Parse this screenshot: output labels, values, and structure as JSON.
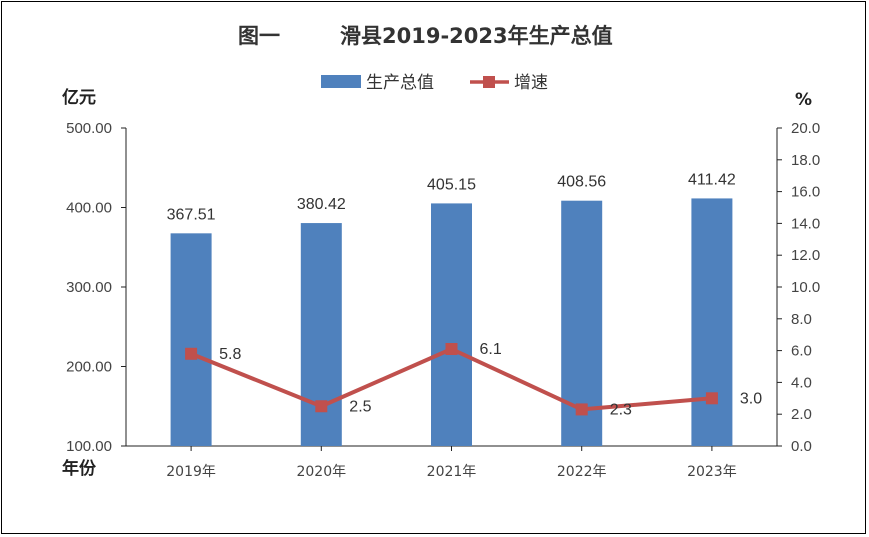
{
  "title_prefix": "图一",
  "title_main": "滑县2019-2023年生产总值",
  "y_left_unit": "亿元",
  "y_right_unit": "%",
  "x_unit": "年份",
  "colors": {
    "bar": "#4F81BD",
    "line": "#C0504D"
  },
  "chart_data": {
    "type": "bar",
    "categories": [
      "2019年",
      "2020年",
      "2021年",
      "2022年",
      "2023年"
    ],
    "series": [
      {
        "name": "生产总值",
        "type": "bar",
        "axis": "left",
        "values": [
          367.51,
          380.42,
          405.15,
          408.56,
          411.42
        ],
        "labels": [
          "367.51",
          "380.42",
          "405.15",
          "408.56",
          "411.42"
        ]
      },
      {
        "name": "增速",
        "type": "line",
        "axis": "right",
        "values": [
          5.8,
          2.5,
          6.1,
          2.3,
          3.0
        ],
        "labels": [
          "5.8",
          "2.5",
          "6.1",
          "2.3",
          "3.0"
        ]
      }
    ],
    "ylim_left": [
      100,
      500
    ],
    "yticks_left": [
      "100.00",
      "200.00",
      "300.00",
      "400.00",
      "500.00"
    ],
    "ylim_right": [
      0,
      20
    ],
    "yticks_right": [
      "0.0",
      "2.0",
      "4.0",
      "6.0",
      "8.0",
      "10.0",
      "12.0",
      "14.0",
      "16.0",
      "18.0",
      "20.0"
    ],
    "legend_position": "top",
    "grid": false
  }
}
